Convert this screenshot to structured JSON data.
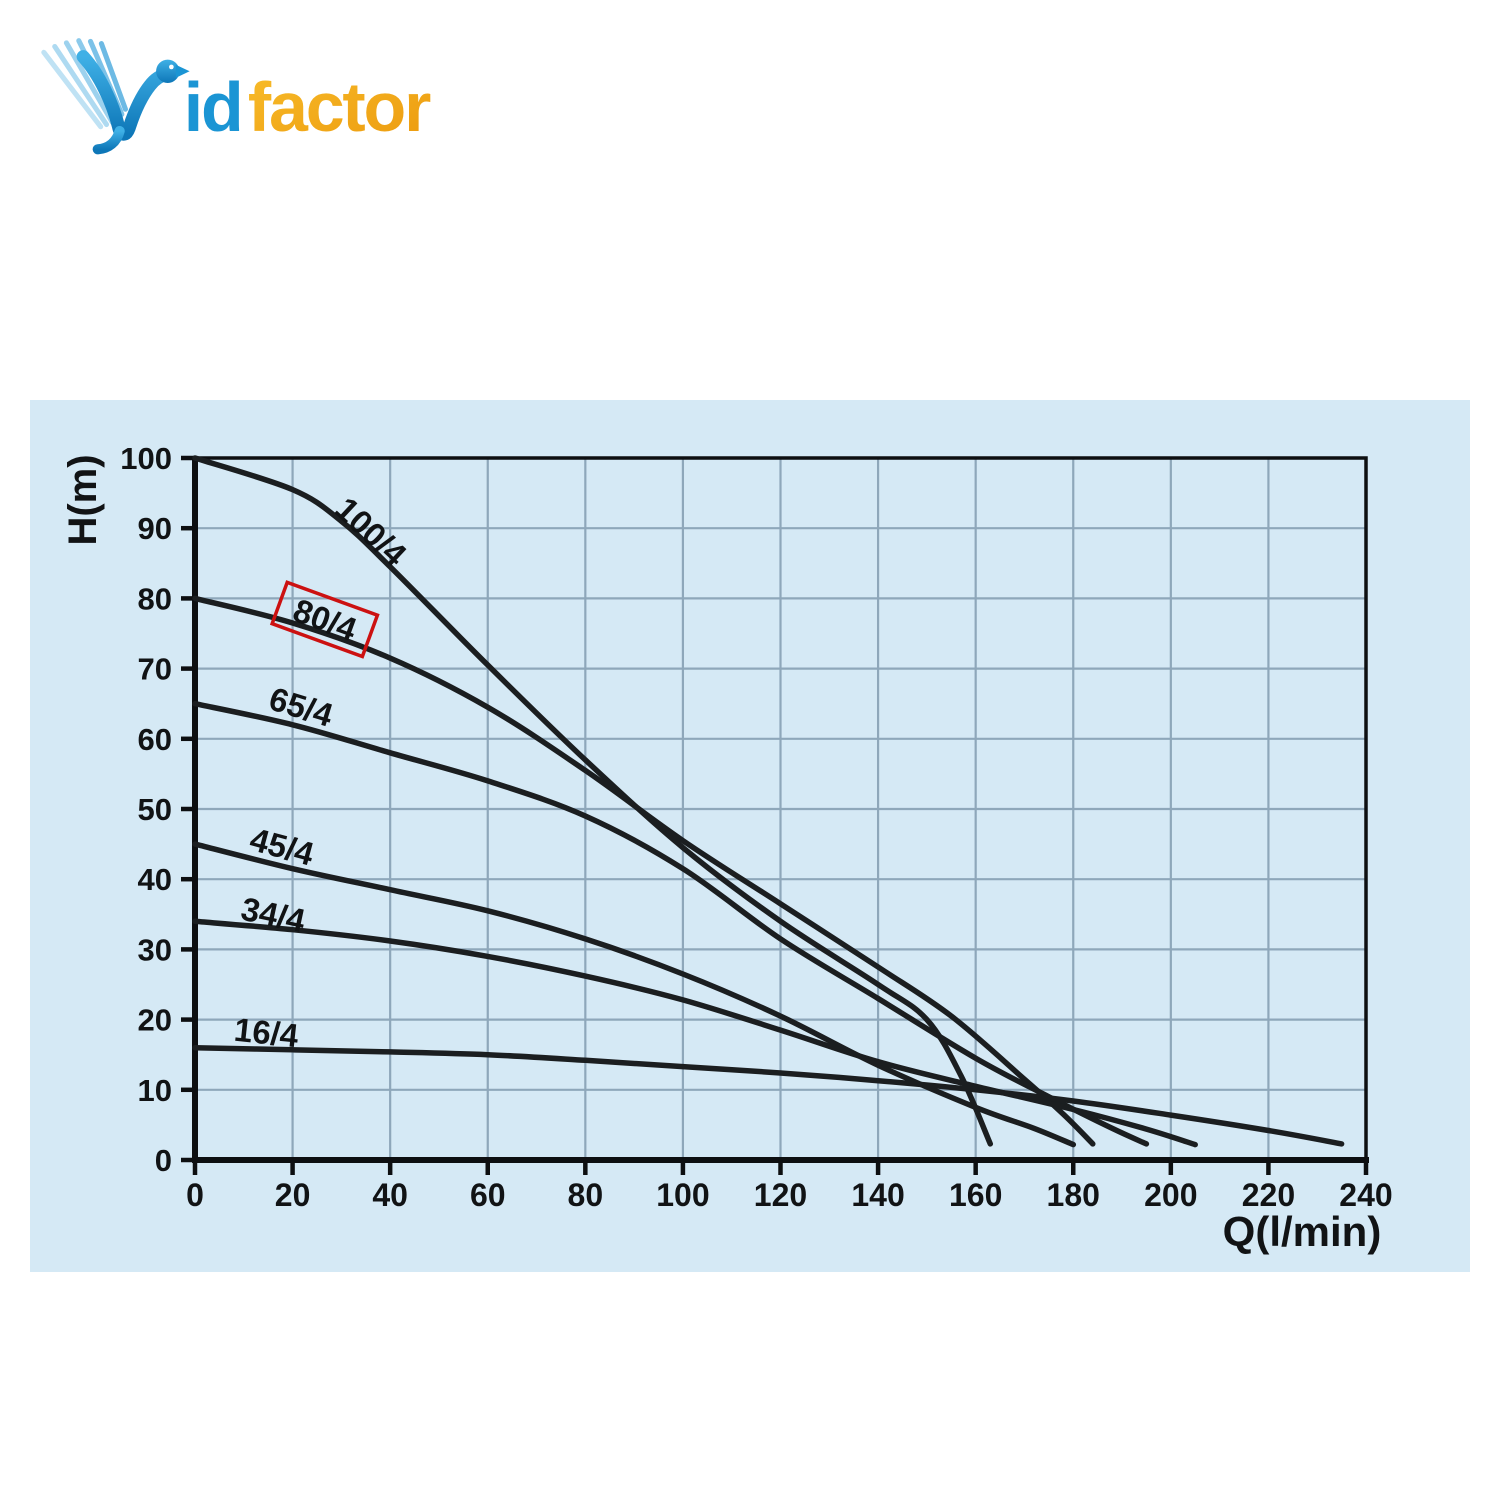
{
  "logo": {
    "text_blue": "id",
    "text_orange": "factor",
    "blue": "#1b95d4",
    "blue_dark": "#0e77b8",
    "blue_light": "#8ecbec",
    "orange": "#f6b21c",
    "orange_dark": "#ec9a0e"
  },
  "colors": {
    "panel_bg": "#d5e9f5",
    "grid": "#8ea7ba",
    "curve": "#1b1e20",
    "axis": "#0d0f11",
    "text": "#111315",
    "highlight_red": "#cc1111",
    "page_bg": "#ffffff"
  },
  "chart_data": {
    "type": "line",
    "title": "",
    "xlabel": "Q(l/min)",
    "ylabel": "H(m)",
    "xlim": [
      0,
      240
    ],
    "ylim": [
      0,
      100
    ],
    "x_step": 20,
    "y_step": 10,
    "grid": "on",
    "x_ticks": [
      "0",
      "20",
      "40",
      "60",
      "80",
      "100",
      "120",
      "140",
      "160",
      "180",
      "200",
      "220",
      "240"
    ],
    "y_ticks": [
      "0",
      "10",
      "20",
      "30",
      "40",
      "50",
      "60",
      "70",
      "80",
      "90",
      "100"
    ],
    "series": [
      {
        "name": "100/4",
        "points": [
          [
            0,
            100
          ],
          [
            20,
            95.5
          ],
          [
            30,
            91
          ],
          [
            40,
            84.5
          ],
          [
            60,
            70.5
          ],
          [
            80,
            57
          ],
          [
            100,
            44.5
          ],
          [
            120,
            34
          ],
          [
            140,
            25
          ],
          [
            150,
            20
          ],
          [
            157,
            12
          ],
          [
            163,
            2.3
          ]
        ],
        "label_at": {
          "q": 36,
          "h": 89.5,
          "angle": 43
        }
      },
      {
        "name": "80/4",
        "points": [
          [
            0,
            80
          ],
          [
            20,
            76.5
          ],
          [
            40,
            71.5
          ],
          [
            60,
            64.5
          ],
          [
            80,
            55.5
          ],
          [
            100,
            45.5
          ],
          [
            120,
            36.5
          ],
          [
            140,
            27.5
          ],
          [
            155,
            20.5
          ],
          [
            170,
            11.5
          ],
          [
            178,
            6.5
          ],
          [
            184,
            2.3
          ]
        ],
        "label_at": {
          "q": 26.6,
          "h": 76.9,
          "angle": 20
        },
        "highlighted": true
      },
      {
        "name": "65/4",
        "points": [
          [
            0,
            65
          ],
          [
            20,
            62
          ],
          [
            40,
            58
          ],
          [
            60,
            54
          ],
          [
            80,
            49
          ],
          [
            100,
            41.5
          ],
          [
            120,
            31.5
          ],
          [
            140,
            23
          ],
          [
            160,
            14.5
          ],
          [
            175,
            9
          ],
          [
            188,
            4.5
          ],
          [
            195,
            2.3
          ]
        ],
        "label_at": {
          "q": 21.7,
          "h": 64.5,
          "angle": 17
        }
      },
      {
        "name": "45/4",
        "points": [
          [
            0,
            45
          ],
          [
            20,
            41.5
          ],
          [
            40,
            38.5
          ],
          [
            60,
            35.5
          ],
          [
            80,
            31.5
          ],
          [
            100,
            26.5
          ],
          [
            120,
            20.5
          ],
          [
            140,
            13.5
          ],
          [
            160,
            7.5
          ],
          [
            172,
            4.5
          ],
          [
            180,
            2.2
          ]
        ],
        "label_at": {
          "q": 17.8,
          "h": 44.6,
          "angle": 15
        }
      },
      {
        "name": "34/4",
        "points": [
          [
            0,
            34
          ],
          [
            20,
            32.8
          ],
          [
            40,
            31.2
          ],
          [
            60,
            29
          ],
          [
            80,
            26.2
          ],
          [
            100,
            22.8
          ],
          [
            120,
            18.5
          ],
          [
            140,
            14
          ],
          [
            160,
            10.5
          ],
          [
            180,
            7.2
          ],
          [
            195,
            4.4
          ],
          [
            205,
            2.2
          ]
        ],
        "label_at": {
          "q": 16,
          "h": 34.9,
          "angle": 12
        }
      },
      {
        "name": "16/4",
        "points": [
          [
            0,
            16
          ],
          [
            20,
            15.7
          ],
          [
            40,
            15.4
          ],
          [
            60,
            15
          ],
          [
            80,
            14.2
          ],
          [
            100,
            13.3
          ],
          [
            120,
            12.4
          ],
          [
            140,
            11.3
          ],
          [
            160,
            10
          ],
          [
            180,
            8.4
          ],
          [
            200,
            6.4
          ],
          [
            220,
            4.2
          ],
          [
            235,
            2.3
          ]
        ],
        "label_at": {
          "q": 14.6,
          "h": 18.1,
          "angle": 6
        }
      }
    ],
    "highlight_box": {
      "series": "80/4",
      "width": 96,
      "height": 44,
      "angle": 20,
      "q": 26.6,
      "h": 77
    },
    "legend": "none"
  }
}
